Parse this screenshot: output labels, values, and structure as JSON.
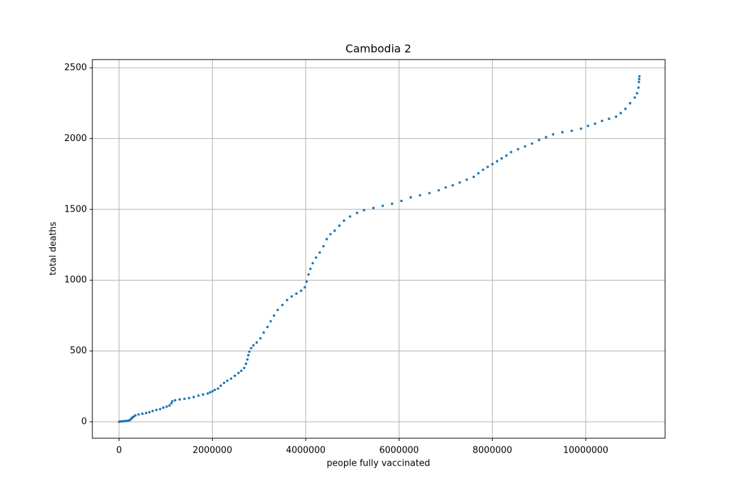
{
  "chart_data": {
    "type": "scatter",
    "title": "Cambodia 2",
    "x_label": "people fully vaccinated",
    "y_label": "total deaths",
    "color": "#1f77b4",
    "grid": true,
    "xlim": [
      -572000,
      11701000
    ],
    "ylim": [
      -116,
      2558
    ],
    "xticks": [
      0,
      2000000,
      4000000,
      6000000,
      8000000,
      10000000
    ],
    "yticks": [
      0,
      500,
      1000,
      1500,
      2000,
      2500
    ],
    "x": [
      0,
      20000,
      50000,
      80000,
      120000,
      160000,
      200000,
      230000,
      250000,
      270000,
      290000,
      310000,
      350000,
      420000,
      500000,
      580000,
      650000,
      720000,
      800000,
      880000,
      950000,
      1020000,
      1080000,
      1120000,
      1140000,
      1200000,
      1300000,
      1400000,
      1500000,
      1600000,
      1700000,
      1800000,
      1900000,
      1950000,
      2000000,
      2050000,
      2120000,
      2180000,
      2250000,
      2320000,
      2400000,
      2480000,
      2560000,
      2620000,
      2680000,
      2720000,
      2750000,
      2770000,
      2790000,
      2830000,
      2880000,
      2950000,
      3030000,
      3100000,
      3180000,
      3250000,
      3320000,
      3400000,
      3500000,
      3600000,
      3700000,
      3800000,
      3900000,
      3980000,
      4020000,
      4060000,
      4100000,
      4150000,
      4220000,
      4300000,
      4380000,
      4450000,
      4530000,
      4620000,
      4720000,
      4820000,
      4950000,
      5100000,
      5250000,
      5450000,
      5650000,
      5850000,
      6050000,
      6250000,
      6450000,
      6650000,
      6850000,
      7000000,
      7150000,
      7300000,
      7450000,
      7600000,
      7700000,
      7800000,
      7900000,
      8000000,
      8100000,
      8200000,
      8300000,
      8400000,
      8550000,
      8700000,
      8850000,
      9000000,
      9150000,
      9300000,
      9500000,
      9700000,
      9900000,
      10050000,
      10200000,
      10350000,
      10500000,
      10650000,
      10750000,
      10850000,
      10950000,
      11050000,
      11100000,
      11130000,
      11140000,
      11145000,
      11150000
    ],
    "values": [
      0,
      2,
      3,
      4,
      5,
      6,
      8,
      12,
      18,
      25,
      32,
      36,
      45,
      52,
      57,
      62,
      68,
      76,
      84,
      90,
      100,
      107,
      115,
      130,
      145,
      152,
      158,
      162,
      168,
      175,
      185,
      193,
      200,
      208,
      215,
      225,
      235,
      255,
      275,
      290,
      305,
      325,
      345,
      360,
      380,
      410,
      440,
      470,
      495,
      520,
      540,
      560,
      590,
      630,
      670,
      710,
      750,
      790,
      825,
      860,
      885,
      905,
      925,
      950,
      990,
      1040,
      1080,
      1120,
      1160,
      1195,
      1240,
      1290,
      1325,
      1350,
      1385,
      1420,
      1450,
      1475,
      1495,
      1510,
      1525,
      1540,
      1560,
      1585,
      1600,
      1615,
      1635,
      1655,
      1670,
      1690,
      1710,
      1730,
      1755,
      1780,
      1800,
      1820,
      1840,
      1860,
      1880,
      1905,
      1925,
      1945,
      1965,
      1990,
      2010,
      2030,
      2045,
      2055,
      2070,
      2090,
      2105,
      2125,
      2140,
      2155,
      2180,
      2210,
      2250,
      2290,
      2320,
      2360,
      2400,
      2420,
      2440
    ]
  }
}
